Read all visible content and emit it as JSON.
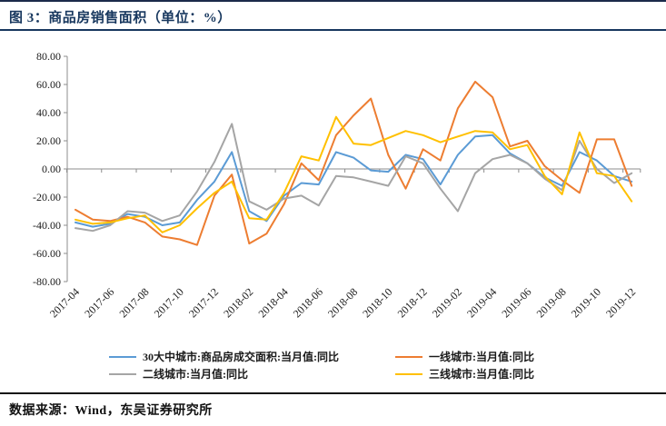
{
  "header": {
    "title": "图 3：商品房销售面积（单位：%）"
  },
  "footer": {
    "source": "数据来源：Wind，东吴证券研究所"
  },
  "colors": {
    "title_navy": "#17375e",
    "axis_gray": "#8c8c8c",
    "text_black": "#1a1a1a"
  },
  "chart_data": {
    "type": "line",
    "title": "商品房销售面积（单位：%）",
    "xlabel": "",
    "ylabel": "",
    "ylim": [
      -80,
      80
    ],
    "y_tick_step": 20,
    "y_tick_labels": [
      "80.00",
      "60.00",
      "40.00",
      "20.00",
      "0.00",
      "-20.00",
      "-40.00",
      "-60.00",
      "-80.00"
    ],
    "grid": false,
    "legend_position": "bottom",
    "x": [
      "2017-04",
      "2017-05",
      "2017-06",
      "2017-07",
      "2017-08",
      "2017-09",
      "2017-10",
      "2017-11",
      "2017-12",
      "2018-01",
      "2018-02",
      "2018-03",
      "2018-04",
      "2018-05",
      "2018-06",
      "2018-07",
      "2018-08",
      "2018-09",
      "2018-10",
      "2018-11",
      "2018-12",
      "2019-01",
      "2019-02",
      "2019-03",
      "2019-04",
      "2019-05",
      "2019-06",
      "2019-07",
      "2019-08",
      "2019-09",
      "2019-10",
      "2019-11",
      "2019-12"
    ],
    "x_tick_labels": [
      "2017-04",
      "2017-06",
      "2017-08",
      "2017-10",
      "2017-12",
      "2018-02",
      "2018-04",
      "2018-06",
      "2018-08",
      "2018-10",
      "2018-12",
      "2019-02",
      "2019-04",
      "2019-06",
      "2019-08",
      "2019-10",
      "2019-12"
    ],
    "series": [
      {
        "name": "30大中城市:商品房成交面积:当月值:同比",
        "color": "#5b9bd5",
        "values": [
          -38,
          -41,
          -39,
          -32,
          -34,
          -40,
          -38,
          -22,
          -9,
          12,
          -30,
          -37,
          -19,
          -10,
          -11,
          12,
          8,
          -1,
          -2,
          10,
          7,
          -11,
          10,
          23,
          24,
          11,
          4,
          -6,
          -12,
          12,
          6,
          -5,
          -9
        ]
      },
      {
        "name": "一线城市:当月值:同比",
        "color": "#ed7d31",
        "values": [
          -29,
          -36,
          -37,
          -34,
          -38,
          -48,
          -50,
          -54,
          -19,
          -4,
          -53,
          -46,
          -25,
          4,
          -8,
          24,
          38,
          50,
          10,
          -14,
          14,
          6,
          43,
          62,
          51,
          16,
          20,
          2,
          -8,
          -17,
          21,
          21,
          -12
        ]
      },
      {
        "name": "二线城市:当月值:同比",
        "color": "#a5a5a5",
        "values": [
          -42,
          -44,
          -40,
          -30,
          -31,
          -37,
          -33,
          -16,
          5,
          32,
          -23,
          -29,
          -21,
          -19,
          -26,
          -5,
          -6,
          -9,
          -12,
          9,
          4,
          -14,
          -30,
          -3,
          7,
          10,
          4,
          -7,
          -15,
          20,
          0,
          -10,
          -3
        ]
      },
      {
        "name": "三线城市:当月值:同比",
        "color": "#ffc000",
        "values": [
          -36,
          -39,
          -38,
          -35,
          -33,
          -45,
          -40,
          -28,
          -17,
          -9,
          -35,
          -36,
          -17,
          9,
          6,
          37,
          18,
          17,
          22,
          27,
          24,
          19,
          23,
          27,
          26,
          14,
          17,
          -5,
          -18,
          26,
          -3,
          -5,
          -23
        ]
      }
    ]
  }
}
